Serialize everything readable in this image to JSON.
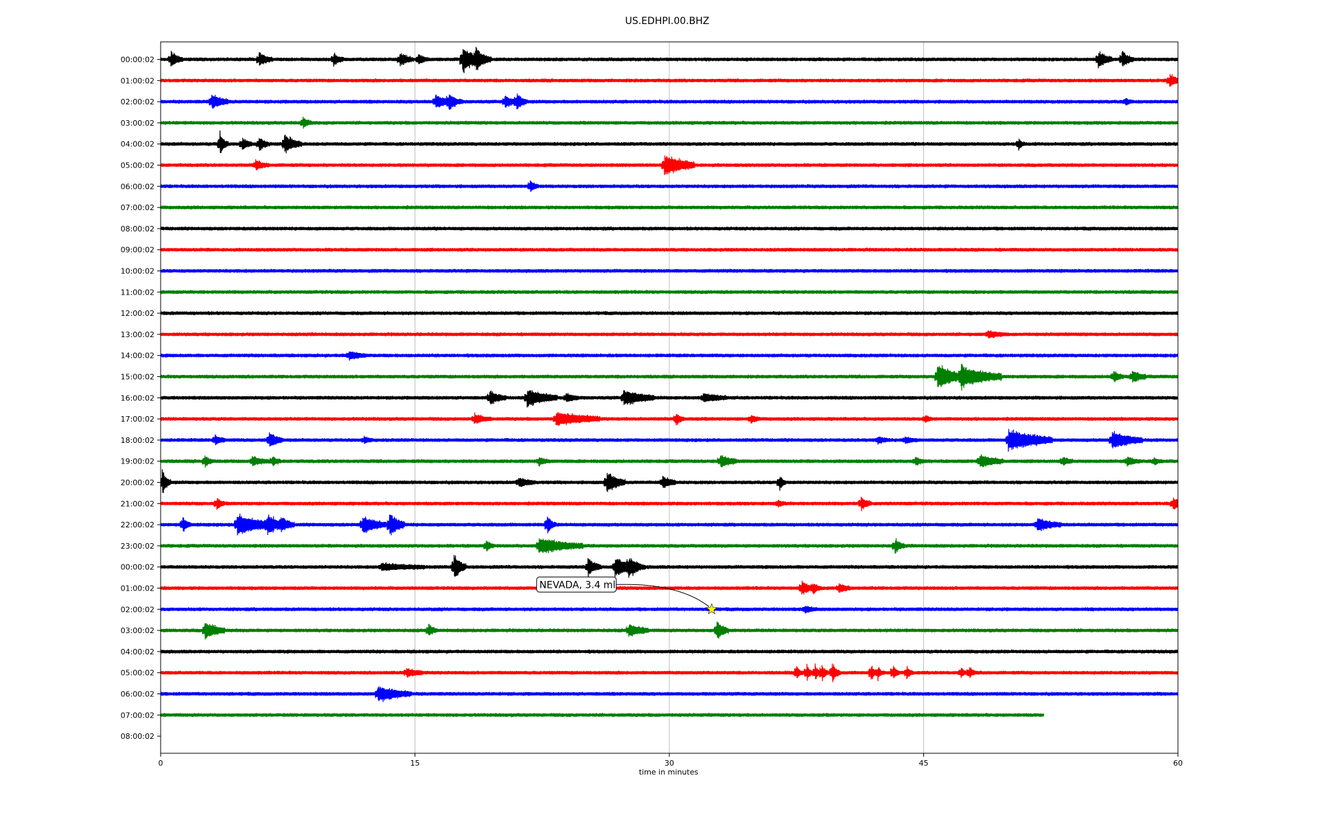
{
  "chart_data": {
    "type": "line",
    "title": "US.EDHPI.00.BHZ",
    "xlabel": "time in minutes",
    "ylabel": "",
    "xlim": [
      0,
      60
    ],
    "xticks": [
      "0",
      "15",
      "30",
      "45",
      "60"
    ],
    "grid": "vertical",
    "trace_colors": [
      "#000000",
      "#ff0000",
      "#0000ff",
      "#007f00"
    ],
    "row_labels": [
      "00:00:02",
      "01:00:02",
      "02:00:02",
      "03:00:02",
      "04:00:02",
      "05:00:02",
      "06:00:02",
      "07:00:02",
      "08:00:02",
      "09:00:02",
      "10:00:02",
      "11:00:02",
      "12:00:02",
      "13:00:02",
      "14:00:02",
      "15:00:02",
      "16:00:02",
      "17:00:02",
      "18:00:02",
      "19:00:02",
      "20:00:02",
      "21:00:02",
      "22:00:02",
      "23:00:02",
      "00:00:02",
      "01:00:02",
      "02:00:02",
      "03:00:02",
      "04:00:02",
      "05:00:02",
      "06:00:02",
      "07:00:02",
      "08:00:02"
    ],
    "traces": [
      {
        "row": 0,
        "end": 60,
        "events": [
          [
            0.6,
            0.8,
            0.5
          ],
          [
            5.8,
            0.6,
            0.6
          ],
          [
            10.2,
            0.6,
            0.4
          ],
          [
            14.1,
            0.6,
            0.6
          ],
          [
            15.2,
            0.5,
            0.4
          ],
          [
            17.8,
            1.4,
            0.8
          ],
          [
            18.6,
            1.0,
            0.7
          ],
          [
            55.3,
            0.8,
            0.6
          ],
          [
            56.7,
            0.8,
            0.5
          ]
        ]
      },
      {
        "row": 1,
        "end": 60,
        "events": [
          [
            59.5,
            0.6,
            0.6
          ]
        ]
      },
      {
        "row": 2,
        "end": 60,
        "events": [
          [
            3.0,
            0.7,
            0.8
          ],
          [
            16.2,
            0.6,
            1.0
          ],
          [
            17.0,
            0.6,
            0.6
          ],
          [
            20.3,
            0.6,
            0.5
          ],
          [
            21.0,
            0.9,
            0.4
          ],
          [
            56.9,
            0.3,
            0.3
          ]
        ]
      },
      {
        "row": 3,
        "end": 60,
        "events": [
          [
            8.4,
            0.6,
            0.3
          ]
        ]
      },
      {
        "row": 4,
        "end": 60,
        "events": [
          [
            3.5,
            1.2,
            0.3
          ],
          [
            4.8,
            0.6,
            0.4
          ],
          [
            5.8,
            0.7,
            0.4
          ],
          [
            7.3,
            0.9,
            0.8
          ],
          [
            50.6,
            0.6,
            0.2
          ]
        ]
      },
      {
        "row": 5,
        "end": 60,
        "events": [
          [
            5.6,
            0.4,
            0.6
          ],
          [
            29.7,
            1.0,
            1.6
          ]
        ]
      },
      {
        "row": 6,
        "end": 60,
        "events": [
          [
            21.8,
            0.6,
            0.3
          ]
        ]
      },
      {
        "row": 7,
        "end": 60,
        "events": []
      },
      {
        "row": 8,
        "end": 60,
        "events": []
      },
      {
        "row": 9,
        "end": 60,
        "events": []
      },
      {
        "row": 10,
        "end": 60,
        "events": []
      },
      {
        "row": 11,
        "end": 60,
        "events": []
      },
      {
        "row": 12,
        "end": 60,
        "events": []
      },
      {
        "row": 13,
        "end": 60,
        "events": [
          [
            48.8,
            0.3,
            0.8
          ]
        ]
      },
      {
        "row": 14,
        "end": 60,
        "events": [
          [
            11.1,
            0.4,
            0.8
          ]
        ]
      },
      {
        "row": 15,
        "end": 60,
        "events": [
          [
            45.8,
            1.2,
            1.4
          ],
          [
            47.2,
            1.0,
            2.2
          ],
          [
            56.2,
            0.6,
            0.4
          ],
          [
            57.3,
            0.6,
            0.6
          ]
        ]
      },
      {
        "row": 16,
        "end": 60,
        "events": [
          [
            19.4,
            0.6,
            0.8
          ],
          [
            21.6,
            0.8,
            1.6
          ],
          [
            23.9,
            0.4,
            0.6
          ],
          [
            27.3,
            0.7,
            1.6
          ],
          [
            32.0,
            0.4,
            1.2
          ]
        ]
      },
      {
        "row": 17,
        "end": 60,
        "events": [
          [
            18.5,
            0.4,
            0.8
          ],
          [
            23.3,
            0.6,
            2.4
          ],
          [
            30.4,
            0.6,
            0.3
          ],
          [
            34.8,
            0.4,
            0.4
          ],
          [
            45.1,
            0.3,
            0.3
          ]
        ]
      },
      {
        "row": 18,
        "end": 60,
        "events": [
          [
            3.2,
            0.5,
            0.4
          ],
          [
            6.4,
            0.8,
            0.6
          ],
          [
            12.0,
            0.3,
            0.3
          ],
          [
            42.3,
            0.3,
            0.5
          ],
          [
            43.9,
            0.3,
            0.5
          ],
          [
            50.0,
            1.0,
            2.4
          ],
          [
            56.1,
            0.8,
            1.6
          ]
        ]
      },
      {
        "row": 19,
        "end": 60,
        "events": [
          [
            2.6,
            0.6,
            0.3
          ],
          [
            5.4,
            0.4,
            0.8
          ],
          [
            6.6,
            0.5,
            0.3
          ],
          [
            22.3,
            0.4,
            0.4
          ],
          [
            33.0,
            0.6,
            0.8
          ],
          [
            44.5,
            0.4,
            0.4
          ],
          [
            48.3,
            0.6,
            1.2
          ],
          [
            53.2,
            0.4,
            0.4
          ],
          [
            57.0,
            0.4,
            0.6
          ],
          [
            58.6,
            0.3,
            0.3
          ]
        ]
      },
      {
        "row": 20,
        "end": 60,
        "events": [
          [
            0.1,
            1.3,
            0.3
          ],
          [
            21.1,
            0.4,
            0.8
          ],
          [
            26.3,
            1.0,
            0.9
          ],
          [
            29.6,
            0.6,
            0.6
          ],
          [
            36.5,
            0.9,
            0.2
          ]
        ]
      },
      {
        "row": 21,
        "end": 60,
        "events": [
          [
            3.3,
            0.6,
            0.3
          ],
          [
            36.4,
            0.3,
            0.3
          ],
          [
            41.3,
            0.7,
            0.4
          ],
          [
            59.7,
            0.6,
            0.5
          ]
        ]
      },
      {
        "row": 22,
        "end": 60,
        "events": [
          [
            1.3,
            0.8,
            0.3
          ],
          [
            4.5,
            1.0,
            2.0
          ],
          [
            6.3,
            0.6,
            1.4
          ],
          [
            7.1,
            0.5,
            0.4
          ],
          [
            11.9,
            0.8,
            1.2
          ],
          [
            13.5,
            1.2,
            0.7
          ],
          [
            22.8,
            1.0,
            0.3
          ],
          [
            51.7,
            0.6,
            1.2
          ]
        ]
      },
      {
        "row": 23,
        "end": 60,
        "events": [
          [
            19.2,
            0.5,
            0.3
          ],
          [
            22.3,
            0.7,
            2.4
          ],
          [
            43.3,
            0.7,
            0.4
          ]
        ]
      },
      {
        "row": 24,
        "end": 60,
        "events": [
          [
            13.0,
            0.3,
            2.4
          ],
          [
            17.3,
            1.3,
            0.5
          ],
          [
            25.2,
            0.8,
            0.6
          ],
          [
            26.8,
            0.9,
            1.2
          ],
          [
            27.6,
            0.6,
            0.8
          ]
        ]
      },
      {
        "row": 25,
        "end": 60,
        "events": [
          [
            37.8,
            0.7,
            0.5
          ],
          [
            38.5,
            0.5,
            0.3
          ],
          [
            40.0,
            0.4,
            0.5
          ]
        ]
      },
      {
        "row": 26,
        "end": 60,
        "events": [
          [
            38.0,
            0.3,
            0.5
          ]
        ]
      },
      {
        "row": 27,
        "end": 60,
        "events": [
          [
            2.6,
            0.8,
            1.0
          ],
          [
            15.8,
            0.6,
            0.3
          ],
          [
            27.6,
            0.6,
            1.0
          ],
          [
            32.8,
            1.0,
            0.5
          ]
        ]
      },
      {
        "row": 28,
        "end": 60,
        "events": []
      },
      {
        "row": 29,
        "end": 60,
        "events": [
          [
            14.5,
            0.4,
            0.8
          ],
          [
            37.5,
            0.8,
            0.2
          ],
          [
            38.1,
            0.9,
            0.2
          ],
          [
            38.6,
            0.8,
            0.2
          ],
          [
            39.0,
            0.9,
            0.2
          ],
          [
            39.6,
            1.0,
            0.3
          ],
          [
            41.9,
            0.8,
            0.2
          ],
          [
            42.3,
            0.6,
            0.2
          ],
          [
            43.2,
            0.9,
            0.2
          ],
          [
            44.0,
            0.7,
            0.2
          ],
          [
            47.2,
            0.5,
            0.2
          ],
          [
            47.7,
            0.6,
            0.2
          ]
        ]
      },
      {
        "row": 30,
        "end": 60,
        "events": [
          [
            12.8,
            0.7,
            1.8
          ]
        ]
      },
      {
        "row": 31,
        "end": 52.1,
        "events": []
      }
    ],
    "annotation": {
      "text": "NEVADA, 3.4 ml",
      "row": 26,
      "time": 32.5,
      "marker_color": "#ffff00"
    }
  }
}
